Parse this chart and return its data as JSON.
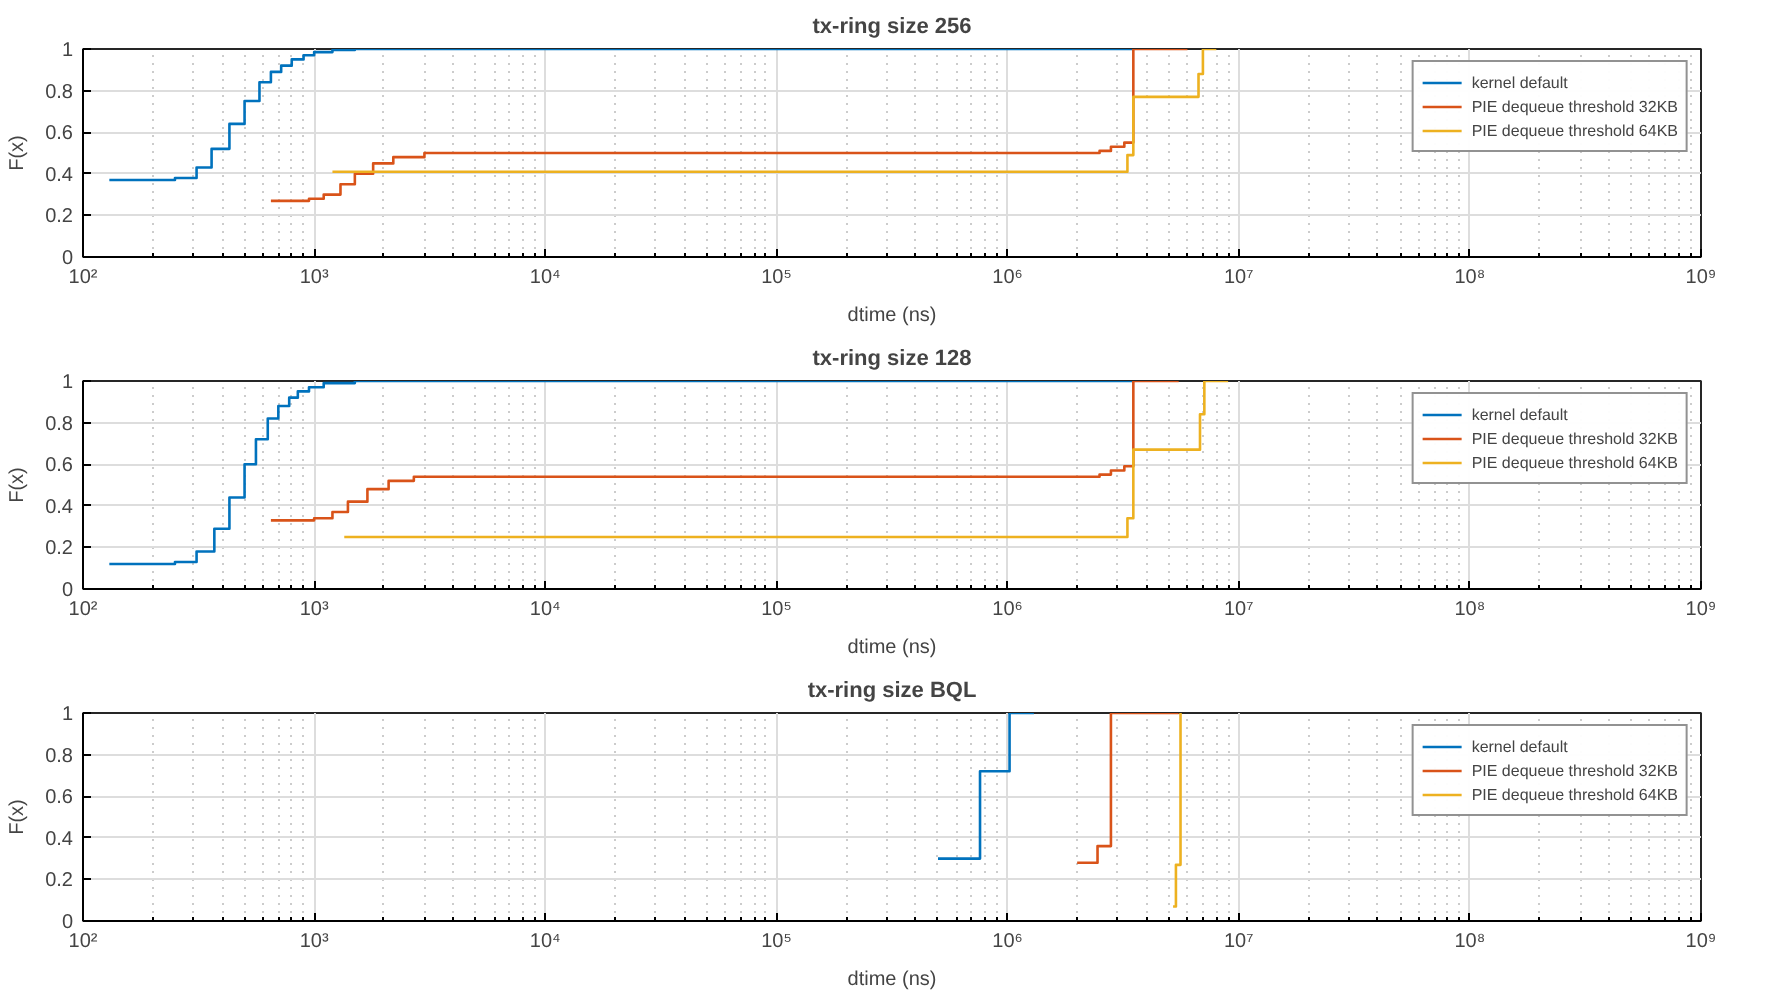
{
  "chart_data": [
    {
      "type": "step",
      "title": "tx-ring size 256",
      "xlabel": "dtime (ns)",
      "ylabel": "F(x)",
      "log": "x",
      "grid": true,
      "legend": "top right",
      "xlim": [
        100,
        1000000000
      ],
      "xticks": [
        {
          "value": 100,
          "label": "10²"
        },
        {
          "value": 1000,
          "label": "10³"
        },
        {
          "value": 10000,
          "label": "10⁴"
        },
        {
          "value": 100000,
          "label": "10⁵"
        },
        {
          "value": 1000000,
          "label": "10⁶"
        },
        {
          "value": 10000000,
          "label": "10⁷"
        },
        {
          "value": 100000000,
          "label": "10⁸"
        },
        {
          "value": 1000000000,
          "label": "10⁹"
        }
      ],
      "ylim": [
        0,
        1
      ],
      "yticks": [
        0,
        0.2,
        0.4,
        0.6,
        0.8,
        1
      ],
      "series": [
        {
          "name": "kernel default",
          "color": "#0072bd",
          "x": [
            130,
            250,
            310,
            360,
            430,
            500,
            580,
            650,
            720,
            800,
            900,
            1000,
            1200,
            1500,
            3500000
          ],
          "values": [
            0.37,
            0.38,
            0.43,
            0.52,
            0.64,
            0.75,
            0.84,
            0.89,
            0.92,
            0.95,
            0.97,
            0.985,
            0.995,
            1,
            1
          ]
        },
        {
          "name": "PIE dequeue threshold 32KB",
          "color": "#d95319",
          "x": [
            650,
            950,
            1100,
            1300,
            1500,
            1800,
            2200,
            3000,
            2500000,
            2800000,
            3200000,
            3500000,
            6000000
          ],
          "values": [
            0.27,
            0.28,
            0.3,
            0.35,
            0.4,
            0.45,
            0.48,
            0.5,
            0.51,
            0.53,
            0.55,
            1,
            1
          ]
        },
        {
          "name": "PIE dequeue threshold 64KB",
          "color": "#edb120",
          "x": [
            1200,
            3200000,
            3300000,
            3500000,
            6500000,
            6700000,
            7000000,
            8000000
          ],
          "values": [
            0.41,
            0.41,
            0.49,
            0.77,
            0.77,
            0.88,
            1,
            1
          ]
        }
      ]
    },
    {
      "type": "step",
      "title": "tx-ring size 128",
      "xlabel": "dtime (ns)",
      "ylabel": "F(x)",
      "log": "x",
      "grid": true,
      "legend": "top right",
      "xlim": [
        100,
        1000000000
      ],
      "xticks": [
        {
          "value": 100,
          "label": "10²"
        },
        {
          "value": 1000,
          "label": "10³"
        },
        {
          "value": 10000,
          "label": "10⁴"
        },
        {
          "value": 100000,
          "label": "10⁵"
        },
        {
          "value": 1000000,
          "label": "10⁶"
        },
        {
          "value": 10000000,
          "label": "10⁷"
        },
        {
          "value": 100000000,
          "label": "10⁸"
        },
        {
          "value": 1000000000,
          "label": "10⁹"
        }
      ],
      "ylim": [
        0,
        1
      ],
      "yticks": [
        0,
        0.2,
        0.4,
        0.6,
        0.8,
        1
      ],
      "series": [
        {
          "name": "kernel default",
          "color": "#0072bd",
          "x": [
            130,
            250,
            310,
            370,
            430,
            500,
            560,
            630,
            700,
            780,
            850,
            950,
            1100,
            1500,
            3500000
          ],
          "values": [
            0.12,
            0.13,
            0.18,
            0.29,
            0.44,
            0.6,
            0.72,
            0.82,
            0.88,
            0.92,
            0.95,
            0.97,
            0.99,
            1,
            1
          ]
        },
        {
          "name": "PIE dequeue threshold 32KB",
          "color": "#d95319",
          "x": [
            650,
            1000,
            1200,
            1400,
            1700,
            2100,
            2700,
            2500000,
            2800000,
            3200000,
            3500000,
            5500000
          ],
          "values": [
            0.33,
            0.34,
            0.37,
            0.42,
            0.48,
            0.52,
            0.54,
            0.55,
            0.57,
            0.59,
            1,
            1
          ]
        },
        {
          "name": "PIE dequeue threshold 64KB",
          "color": "#edb120",
          "x": [
            1350,
            3200000,
            3300000,
            3500000,
            6600000,
            6800000,
            7100000,
            9000000
          ],
          "values": [
            0.25,
            0.25,
            0.34,
            0.67,
            0.67,
            0.84,
            1,
            1
          ]
        }
      ]
    },
    {
      "type": "step",
      "title": "tx-ring size BQL",
      "xlabel": "dtime (ns)",
      "ylabel": "F(x)",
      "log": "x",
      "grid": true,
      "legend": "top right",
      "xlim": [
        100,
        1000000000
      ],
      "xticks": [
        {
          "value": 100,
          "label": "10²"
        },
        {
          "value": 1000,
          "label": "10³"
        },
        {
          "value": 10000,
          "label": "10⁴"
        },
        {
          "value": 100000,
          "label": "10⁵"
        },
        {
          "value": 1000000,
          "label": "10⁶"
        },
        {
          "value": 10000000,
          "label": "10⁷"
        },
        {
          "value": 100000000,
          "label": "10⁸"
        },
        {
          "value": 1000000000,
          "label": "10⁹"
        }
      ],
      "ylim": [
        0,
        1
      ],
      "yticks": [
        0,
        0.2,
        0.4,
        0.6,
        0.8,
        1
      ],
      "series": [
        {
          "name": "kernel default",
          "color": "#0072bd",
          "x": [
            500000,
            730000,
            760000,
            980000,
            1020000,
            1300000
          ],
          "values": [
            0.3,
            0.3,
            0.72,
            0.72,
            1,
            1
          ]
        },
        {
          "name": "PIE dequeue threshold 32KB",
          "color": "#d95319",
          "x": [
            2000000,
            2400000,
            2450000,
            2700000,
            2800000,
            5500000
          ],
          "values": [
            0.28,
            0.28,
            0.36,
            0.36,
            1,
            1
          ]
        },
        {
          "name": "PIE dequeue threshold 64KB",
          "color": "#edb120",
          "x": [
            5200000,
            5350000,
            5500000,
            5600000
          ],
          "values": [
            0.07,
            0.27,
            0.27,
            1
          ]
        }
      ]
    }
  ]
}
